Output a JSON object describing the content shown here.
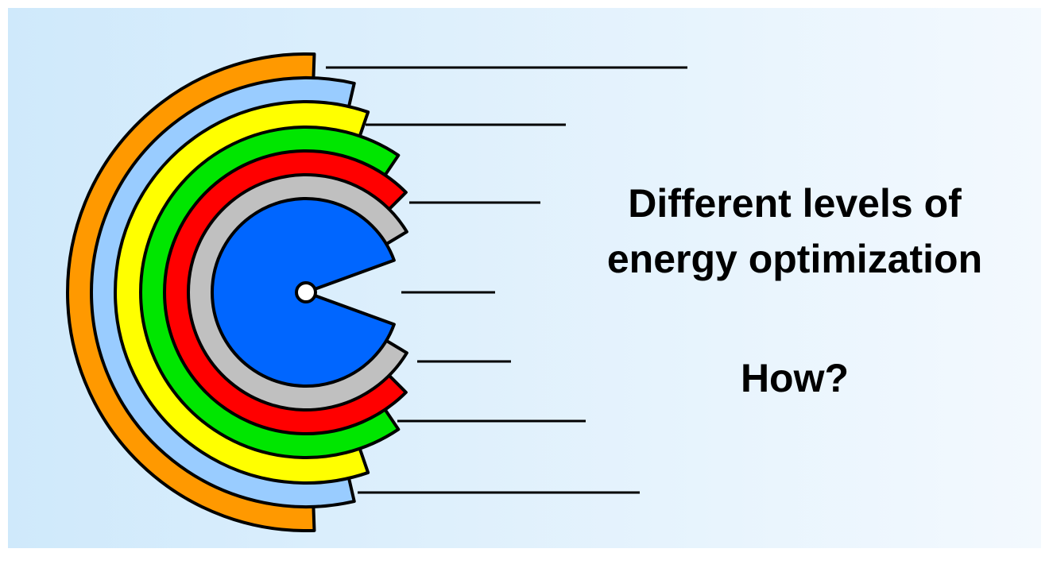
{
  "title_lines": [
    "Different levels of",
    "energy optimization"
  ],
  "question": "How?"
}
